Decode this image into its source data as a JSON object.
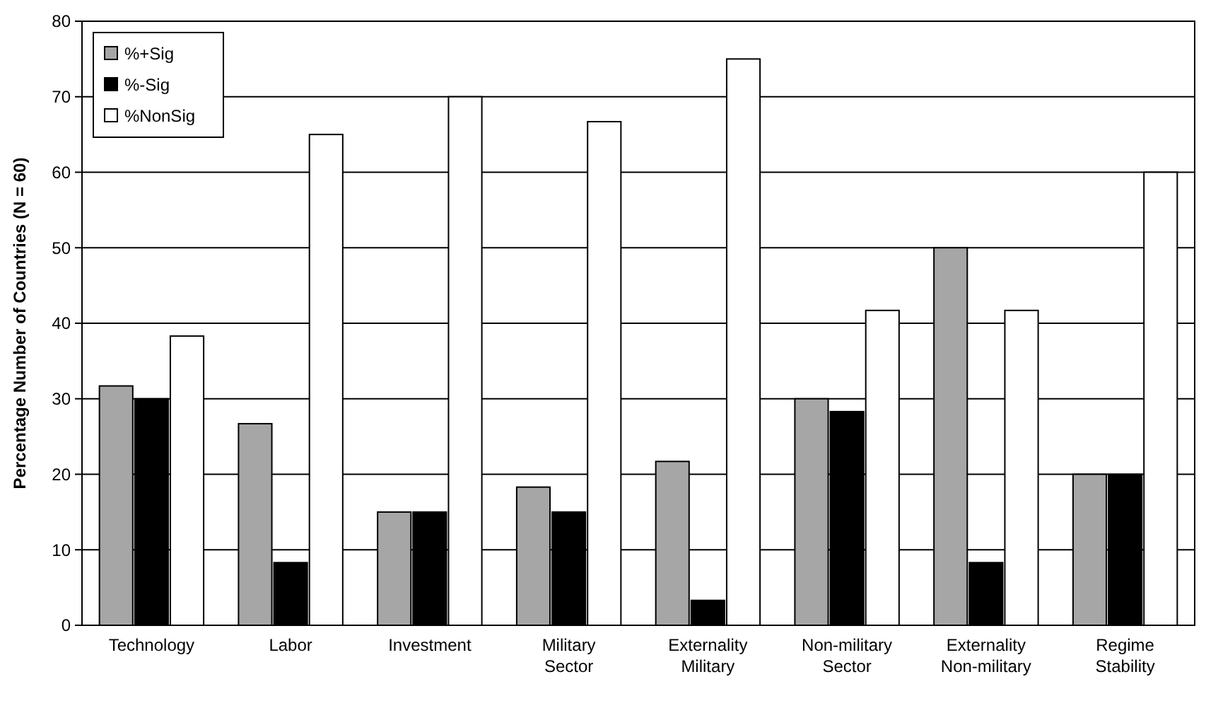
{
  "chart_data": {
    "type": "bar",
    "categories": [
      "Technology",
      "Labor",
      "Investment",
      "Military Sector",
      "Externality Military",
      "Non-military Sector",
      "Externality Non-military",
      "Regime Stability"
    ],
    "series": [
      {
        "name": "%+Sig",
        "color": "#a6a6a6",
        "values": [
          31.7,
          26.7,
          15,
          18.3,
          21.7,
          30,
          50,
          20
        ]
      },
      {
        "name": "%-Sig",
        "color": "#000000",
        "values": [
          30,
          8.3,
          15,
          15,
          3.3,
          28.3,
          8.3,
          20
        ]
      },
      {
        "name": "%NonSig",
        "color": "#ffffff",
        "values": [
          38.3,
          65,
          70,
          66.7,
          75,
          41.7,
          41.7,
          60
        ]
      }
    ],
    "ylabel": "Percentage Number of Countries (N = 60)",
    "ylim": [
      0,
      80
    ],
    "yticks": [
      0,
      10,
      20,
      30,
      40,
      50,
      60,
      70,
      80
    ],
    "grid": "y",
    "legend": "top left"
  }
}
